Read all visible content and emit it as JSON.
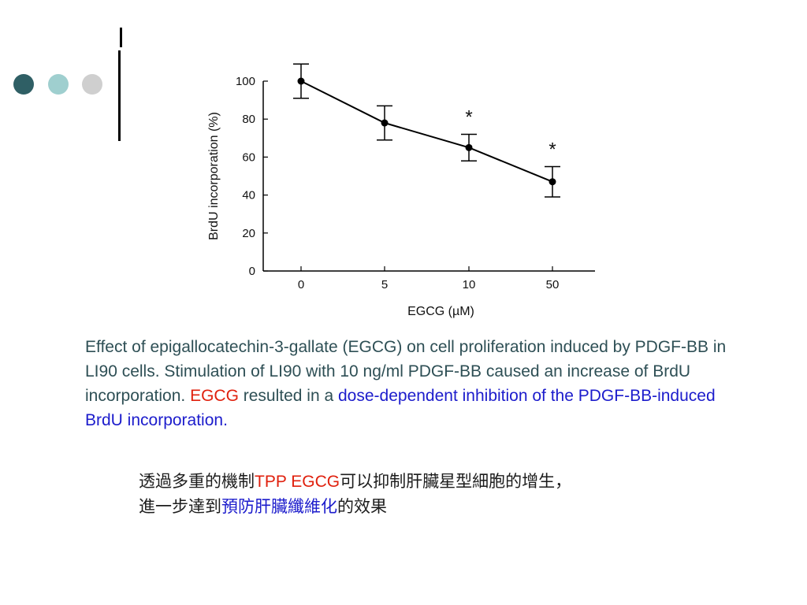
{
  "decoration": {
    "colors": [
      "#2f5f65",
      "#9fcfcf",
      "#cfcfcf"
    ]
  },
  "chart_data": {
    "type": "line",
    "categories": [
      "0",
      "5",
      "10",
      "50"
    ],
    "values": [
      100,
      78,
      65,
      47
    ],
    "errors": [
      9,
      9,
      7,
      8
    ],
    "significance_marks": [
      "",
      "",
      "*",
      "*"
    ],
    "ylabel": "BrdU incorporation (%)",
    "xlabel": "EGCG (µM)",
    "ylim": [
      0,
      100
    ],
    "yticks": [
      "0",
      "20",
      "40",
      "60",
      "80",
      "100"
    ],
    "grid": false,
    "line_color": "#000000"
  },
  "caption": {
    "part1": "Effect of epigallocatechin-3-gallate (EGCG) on cell proliferation induced by PDGF-BB in LI90 cells. Stimulation of LI90 with 10 ng/ml PDGF-BB caused an increase of BrdU incorporation. ",
    "part2": "EGCG",
    "part3": " resulted in a ",
    "part4": "dose-dependent inhibition of the PDGF-BB-induced BrdU incorporation.",
    "colors": {
      "body": "#2e4f55",
      "red": "#e0200d",
      "blue": "#1c1ccc"
    }
  },
  "chinese": {
    "line1_a": "透過多重的機制",
    "line1_b": "TPP EGCG",
    "line1_c": "可以抑制肝臟星型細胞的增生，",
    "line2_a": "進一步達到",
    "line2_b": "預防肝臟纖維化",
    "line2_c": "的效果"
  }
}
